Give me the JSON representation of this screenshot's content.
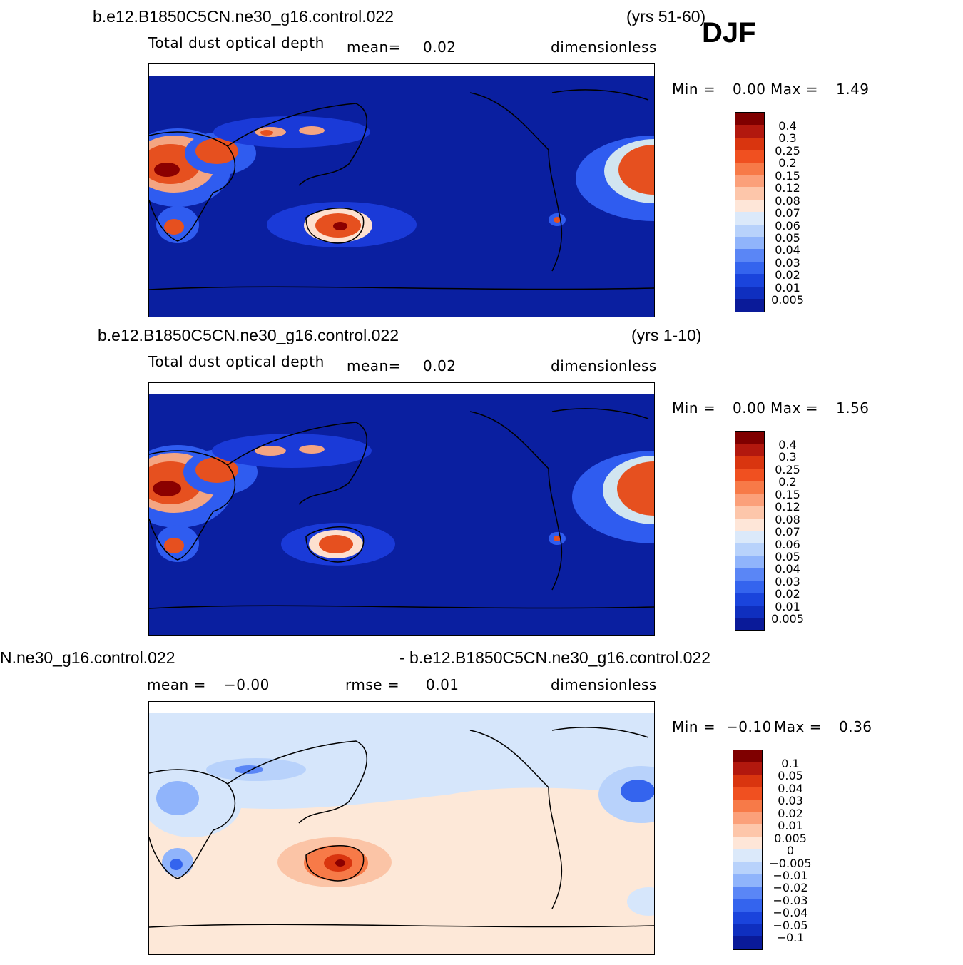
{
  "season": "DJF",
  "colors": {
    "ocean": "#0a1fa0",
    "coast": "#000000"
  },
  "panels": [
    {
      "case_left": "b.e12.B1850C5CN.ne30_g16.control.022",
      "case_right": "(yrs 51-60)",
      "variable": "Total dust optical depth",
      "stat1_label": "mean=",
      "stat1_value": "0.02",
      "units": "dimensionless",
      "min_label": "Min =",
      "min_value": "0.00",
      "max_label": "Max =",
      "max_value": "1.49",
      "levels": [
        "0.4",
        "0.3",
        "0.25",
        "0.2",
        "0.15",
        "0.12",
        "0.08",
        "0.07",
        "0.06",
        "0.05",
        "0.04",
        "0.03",
        "0.02",
        "0.01",
        "0.005"
      ]
    },
    {
      "case_left": "b.e12.B1850C5CN.ne30_g16.control.022",
      "case_right": "(yrs 1-10)",
      "variable": "Total dust optical depth",
      "stat1_label": "mean=",
      "stat1_value": "0.02",
      "units": "dimensionless",
      "min_label": "Min =",
      "min_value": "0.00",
      "max_label": "Max =",
      "max_value": "1.56",
      "levels": [
        "0.4",
        "0.3",
        "0.25",
        "0.2",
        "0.15",
        "0.12",
        "0.08",
        "0.07",
        "0.06",
        "0.05",
        "0.04",
        "0.03",
        "0.02",
        "0.01",
        "0.005"
      ]
    },
    {
      "case_left": "N.ne30_g16.control.022",
      "case_right": "- b.e12.B1850C5CN.ne30_g16.control.022",
      "stat1_label": "mean =",
      "stat1_value": "−0.00",
      "stat2_label": "rmse =",
      "stat2_value": "0.01",
      "units": "dimensionless",
      "min_label": "Min =",
      "min_value": "−0.10",
      "max_label": "Max =",
      "max_value": "0.36",
      "levels": [
        "0.1",
        "0.05",
        "0.04",
        "0.03",
        "0.02",
        "0.01",
        "0.005",
        "0",
        "−0.005",
        "−0.01",
        "−0.02",
        "−0.03",
        "−0.04",
        "−0.05",
        "−0.1"
      ]
    }
  ]
}
